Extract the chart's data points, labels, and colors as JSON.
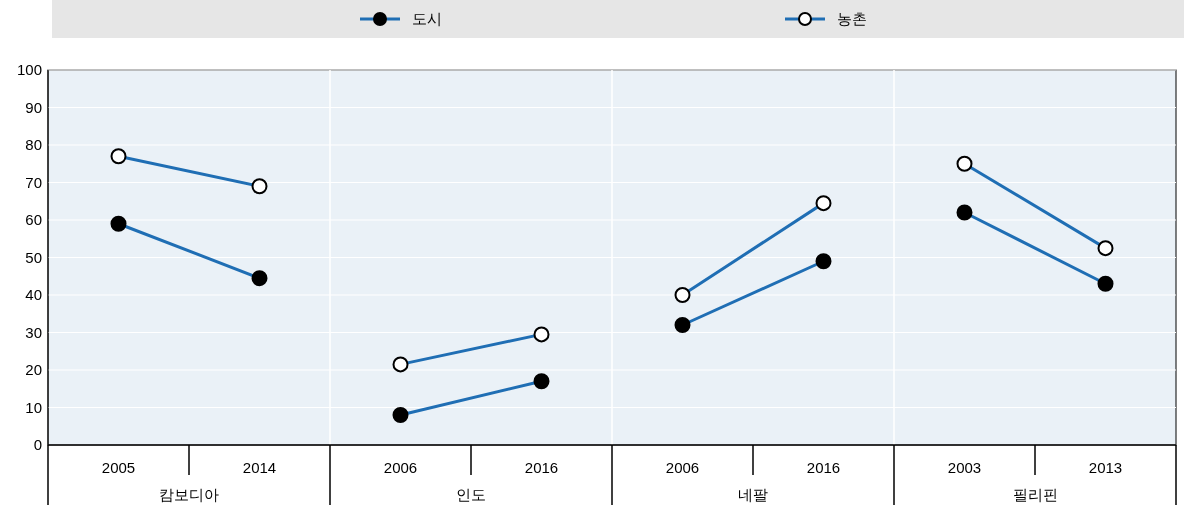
{
  "chart_data": {
    "type": "line",
    "categories": [
      "2005",
      "2014",
      "2006",
      "2016",
      "2006",
      "2016",
      "2003",
      "2013"
    ],
    "annotations": [
      "캄보디아",
      "인도",
      "네팔",
      "필리핀"
    ],
    "series": [
      {
        "name": "도시",
        "color": "#1f6eb4",
        "values": [
          59,
          44.5,
          8,
          17,
          32,
          49,
          62,
          43
        ]
      },
      {
        "name": "농촌",
        "color": "#1f6eb4",
        "values": [
          77,
          69,
          21.5,
          29.5,
          40,
          64.5,
          75,
          52.5
        ]
      }
    ],
    "ylim": [
      0,
      100
    ],
    "yticks": [
      0,
      10,
      20,
      30,
      40,
      50,
      60,
      70,
      80,
      90,
      100
    ],
    "grid": "y",
    "legend": "top",
    "marker": "circle"
  }
}
